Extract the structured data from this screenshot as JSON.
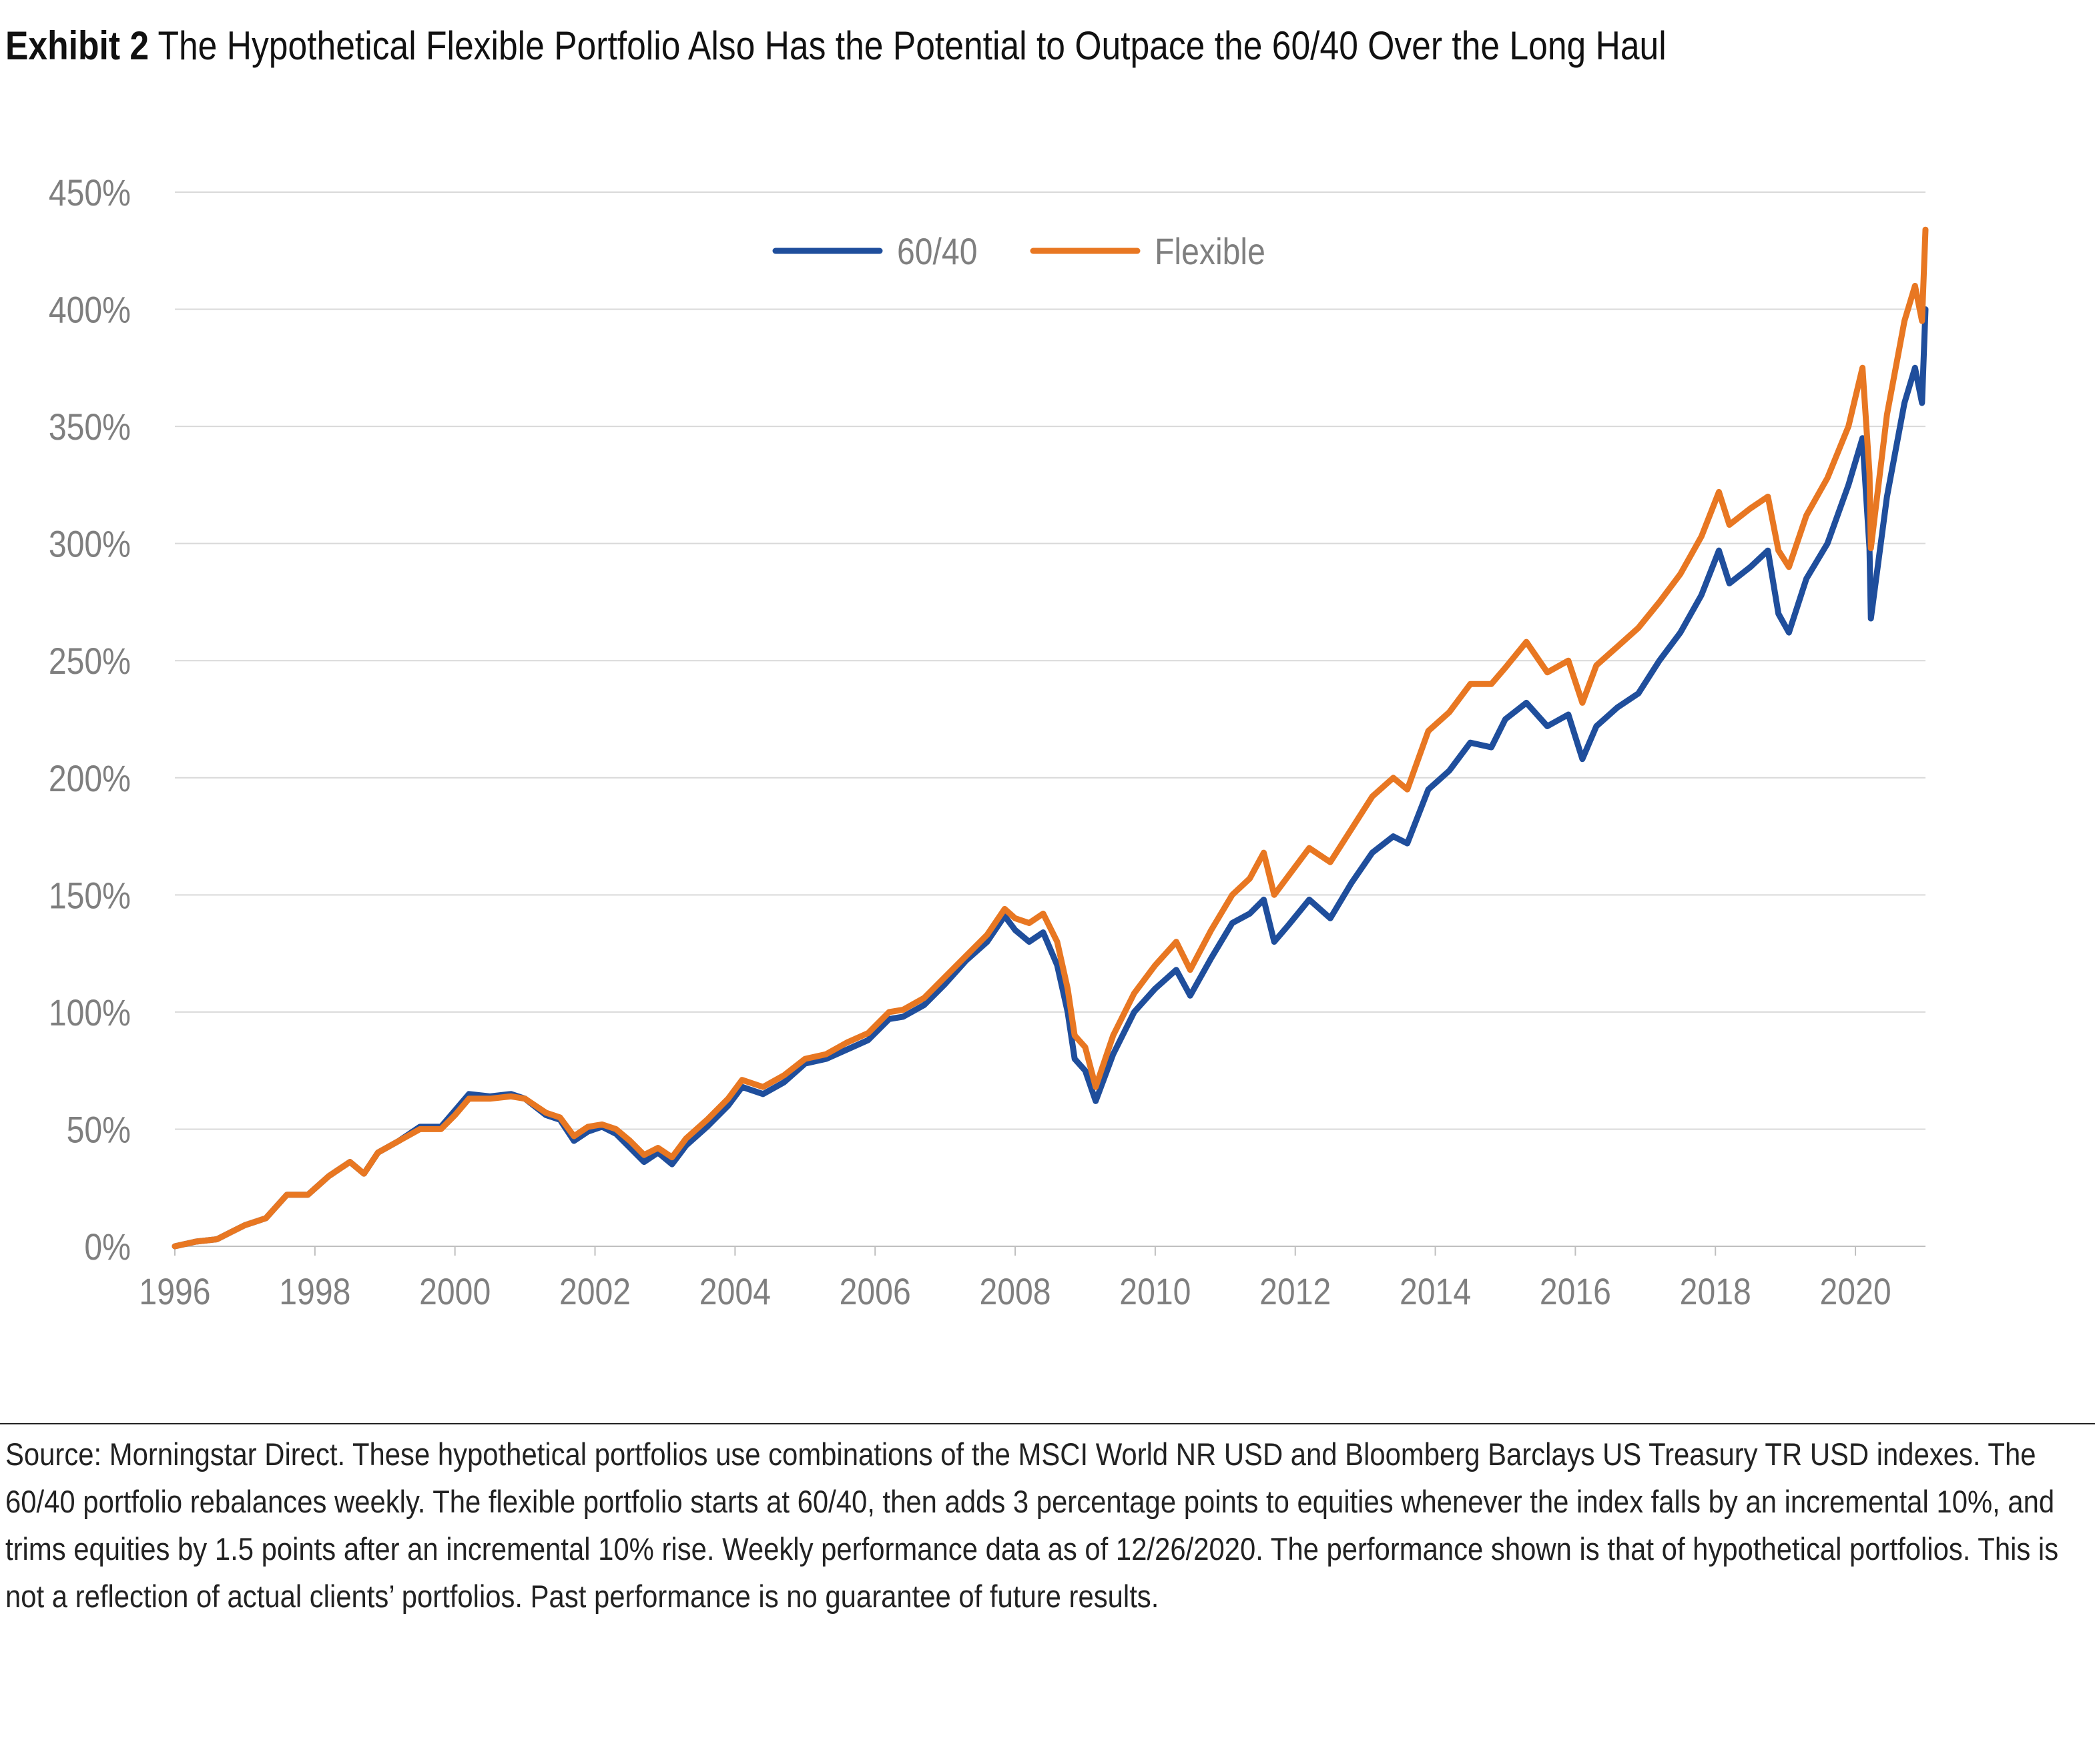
{
  "title": {
    "exhibit": "Exhibit 2",
    "text": "The Hypothetical Flexible Portfolio Also Has the Potential to Outpace the 60/40 Over the Long Haul"
  },
  "colors": {
    "series_6040": "#1f4e9c",
    "series_flexible": "#e87722",
    "grid": "#d9d9d9",
    "axis_text": "#7f7f7f"
  },
  "chart_data": {
    "type": "line",
    "title": "",
    "xlabel": "",
    "ylabel": "",
    "xlim": [
      1996,
      2021
    ],
    "ylim": [
      0,
      450
    ],
    "y_tick_labels": [
      "0%",
      "50%",
      "100%",
      "150%",
      "200%",
      "250%",
      "300%",
      "350%",
      "400%",
      "450%"
    ],
    "y_tick_values": [
      0,
      50,
      100,
      150,
      200,
      250,
      300,
      350,
      400,
      450
    ],
    "x_tick_labels": [
      "1996",
      "1998",
      "2000",
      "2002",
      "2004",
      "2006",
      "2008",
      "2010",
      "2012",
      "2014",
      "2016",
      "2018",
      "2020"
    ],
    "x_tick_values": [
      1996,
      1998,
      2000,
      2002,
      2004,
      2006,
      2008,
      2010,
      2012,
      2014,
      2016,
      2018,
      2020
    ],
    "grid": "horizontal",
    "legend_position": "top-center",
    "series": [
      {
        "name": "60/40",
        "points": [
          [
            1996.0,
            0
          ],
          [
            1996.3,
            2
          ],
          [
            1996.6,
            3
          ],
          [
            1996.8,
            6
          ],
          [
            1997.0,
            9
          ],
          [
            1997.3,
            12
          ],
          [
            1997.6,
            22
          ],
          [
            1997.9,
            22
          ],
          [
            1998.2,
            30
          ],
          [
            1998.5,
            36
          ],
          [
            1998.7,
            31
          ],
          [
            1998.9,
            40
          ],
          [
            1999.2,
            45
          ],
          [
            1999.5,
            51
          ],
          [
            1999.8,
            51
          ],
          [
            2000.0,
            58
          ],
          [
            2000.2,
            65
          ],
          [
            2000.5,
            64
          ],
          [
            2000.8,
            65
          ],
          [
            2001.0,
            63
          ],
          [
            2001.3,
            56
          ],
          [
            2001.5,
            54
          ],
          [
            2001.7,
            45
          ],
          [
            2001.9,
            49
          ],
          [
            2002.1,
            51
          ],
          [
            2002.3,
            48
          ],
          [
            2002.5,
            42
          ],
          [
            2002.7,
            36
          ],
          [
            2002.9,
            40
          ],
          [
            2003.1,
            35
          ],
          [
            2003.3,
            43
          ],
          [
            2003.6,
            51
          ],
          [
            2003.9,
            60
          ],
          [
            2004.1,
            68
          ],
          [
            2004.4,
            65
          ],
          [
            2004.7,
            70
          ],
          [
            2005.0,
            78
          ],
          [
            2005.3,
            80
          ],
          [
            2005.6,
            84
          ],
          [
            2005.9,
            88
          ],
          [
            2006.2,
            97
          ],
          [
            2006.4,
            98
          ],
          [
            2006.7,
            103
          ],
          [
            2007.0,
            112
          ],
          [
            2007.3,
            122
          ],
          [
            2007.6,
            130
          ],
          [
            2007.85,
            141
          ],
          [
            2008.0,
            135
          ],
          [
            2008.2,
            130
          ],
          [
            2008.4,
            134
          ],
          [
            2008.6,
            120
          ],
          [
            2008.75,
            100
          ],
          [
            2008.85,
            80
          ],
          [
            2009.0,
            75
          ],
          [
            2009.15,
            62
          ],
          [
            2009.4,
            82
          ],
          [
            2009.7,
            100
          ],
          [
            2010.0,
            110
          ],
          [
            2010.3,
            118
          ],
          [
            2010.5,
            107
          ],
          [
            2010.8,
            123
          ],
          [
            2011.1,
            138
          ],
          [
            2011.35,
            142
          ],
          [
            2011.55,
            148
          ],
          [
            2011.7,
            130
          ],
          [
            2011.9,
            137
          ],
          [
            2012.2,
            148
          ],
          [
            2012.5,
            140
          ],
          [
            2012.8,
            155
          ],
          [
            2013.1,
            168
          ],
          [
            2013.4,
            175
          ],
          [
            2013.6,
            172
          ],
          [
            2013.9,
            195
          ],
          [
            2014.2,
            203
          ],
          [
            2014.5,
            215
          ],
          [
            2014.8,
            213
          ],
          [
            2015.0,
            225
          ],
          [
            2015.3,
            232
          ],
          [
            2015.6,
            222
          ],
          [
            2015.9,
            227
          ],
          [
            2016.1,
            208
          ],
          [
            2016.3,
            222
          ],
          [
            2016.6,
            230
          ],
          [
            2016.9,
            236
          ],
          [
            2017.2,
            250
          ],
          [
            2017.5,
            262
          ],
          [
            2017.8,
            278
          ],
          [
            2018.05,
            297
          ],
          [
            2018.2,
            283
          ],
          [
            2018.5,
            290
          ],
          [
            2018.75,
            297
          ],
          [
            2018.9,
            270
          ],
          [
            2019.05,
            262
          ],
          [
            2019.3,
            285
          ],
          [
            2019.6,
            300
          ],
          [
            2019.9,
            325
          ],
          [
            2020.1,
            345
          ],
          [
            2020.2,
            298
          ],
          [
            2020.22,
            268
          ],
          [
            2020.45,
            320
          ],
          [
            2020.7,
            360
          ],
          [
            2020.85,
            375
          ],
          [
            2020.95,
            360
          ],
          [
            2021.0,
            400
          ]
        ]
      },
      {
        "name": "Flexible",
        "points": [
          [
            1996.0,
            0
          ],
          [
            1996.3,
            2
          ],
          [
            1996.6,
            3
          ],
          [
            1996.8,
            6
          ],
          [
            1997.0,
            9
          ],
          [
            1997.3,
            12
          ],
          [
            1997.6,
            22
          ],
          [
            1997.9,
            22
          ],
          [
            1998.2,
            30
          ],
          [
            1998.5,
            36
          ],
          [
            1998.7,
            31
          ],
          [
            1998.9,
            40
          ],
          [
            1999.2,
            45
          ],
          [
            1999.5,
            50
          ],
          [
            1999.8,
            50
          ],
          [
            2000.0,
            56
          ],
          [
            2000.2,
            63
          ],
          [
            2000.5,
            63
          ],
          [
            2000.8,
            64
          ],
          [
            2001.0,
            63
          ],
          [
            2001.3,
            57
          ],
          [
            2001.5,
            55
          ],
          [
            2001.7,
            47
          ],
          [
            2001.9,
            51
          ],
          [
            2002.1,
            52
          ],
          [
            2002.3,
            50
          ],
          [
            2002.5,
            45
          ],
          [
            2002.7,
            39
          ],
          [
            2002.9,
            42
          ],
          [
            2003.1,
            38
          ],
          [
            2003.3,
            46
          ],
          [
            2003.6,
            54
          ],
          [
            2003.9,
            63
          ],
          [
            2004.1,
            71
          ],
          [
            2004.4,
            68
          ],
          [
            2004.7,
            73
          ],
          [
            2005.0,
            80
          ],
          [
            2005.3,
            82
          ],
          [
            2005.6,
            87
          ],
          [
            2005.9,
            91
          ],
          [
            2006.2,
            100
          ],
          [
            2006.4,
            101
          ],
          [
            2006.7,
            106
          ],
          [
            2007.0,
            115
          ],
          [
            2007.3,
            124
          ],
          [
            2007.6,
            133
          ],
          [
            2007.85,
            144
          ],
          [
            2008.0,
            140
          ],
          [
            2008.2,
            138
          ],
          [
            2008.4,
            142
          ],
          [
            2008.6,
            130
          ],
          [
            2008.75,
            110
          ],
          [
            2008.85,
            90
          ],
          [
            2009.0,
            85
          ],
          [
            2009.15,
            68
          ],
          [
            2009.4,
            90
          ],
          [
            2009.7,
            108
          ],
          [
            2010.0,
            120
          ],
          [
            2010.3,
            130
          ],
          [
            2010.5,
            118
          ],
          [
            2010.8,
            135
          ],
          [
            2011.1,
            150
          ],
          [
            2011.35,
            157
          ],
          [
            2011.55,
            168
          ],
          [
            2011.7,
            150
          ],
          [
            2011.9,
            158
          ],
          [
            2012.2,
            170
          ],
          [
            2012.5,
            164
          ],
          [
            2012.8,
            178
          ],
          [
            2013.1,
            192
          ],
          [
            2013.4,
            200
          ],
          [
            2013.6,
            195
          ],
          [
            2013.9,
            220
          ],
          [
            2014.2,
            228
          ],
          [
            2014.5,
            240
          ],
          [
            2014.8,
            240
          ],
          [
            2015.0,
            247
          ],
          [
            2015.3,
            258
          ],
          [
            2015.6,
            245
          ],
          [
            2015.9,
            250
          ],
          [
            2016.1,
            232
          ],
          [
            2016.3,
            248
          ],
          [
            2016.6,
            256
          ],
          [
            2016.9,
            264
          ],
          [
            2017.2,
            275
          ],
          [
            2017.5,
            287
          ],
          [
            2017.8,
            303
          ],
          [
            2018.05,
            322
          ],
          [
            2018.2,
            308
          ],
          [
            2018.5,
            315
          ],
          [
            2018.75,
            320
          ],
          [
            2018.9,
            297
          ],
          [
            2019.05,
            290
          ],
          [
            2019.3,
            312
          ],
          [
            2019.6,
            328
          ],
          [
            2019.9,
            350
          ],
          [
            2020.1,
            375
          ],
          [
            2020.2,
            330
          ],
          [
            2020.22,
            298
          ],
          [
            2020.45,
            355
          ],
          [
            2020.7,
            395
          ],
          [
            2020.85,
            410
          ],
          [
            2020.95,
            395
          ],
          [
            2021.0,
            434
          ]
        ]
      }
    ]
  },
  "source_note": "Source: Morningstar Direct. These hypothetical portfolios use combinations of the MSCI World NR USD and Bloomberg Barclays US Treasury TR USD indexes. The 60/40 portfolio rebalances weekly. The flexible portfolio starts at 60/40, then adds 3 percentage points to equities whenever the index falls by an incremental 10%, and trims equities by 1.5 points after an incremental 10% rise. Weekly performance data as of 12/26/2020. The performance shown is that of hypothetical portfolios. This is not a reflection of actual clients’ portfolios. Past performance is no guarantee of future results."
}
